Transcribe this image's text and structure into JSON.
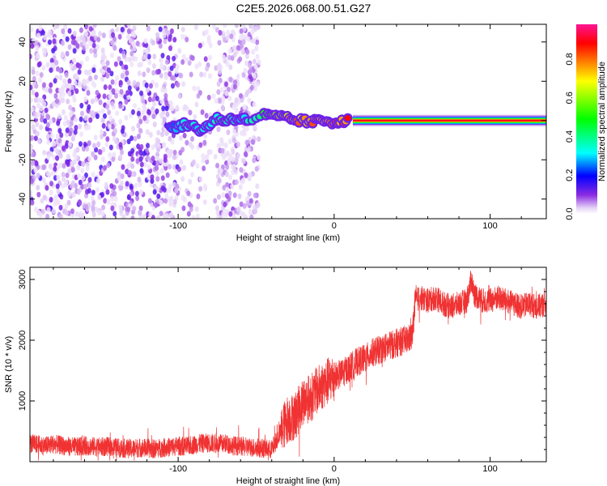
{
  "chart_data": [
    {
      "type": "heatmap",
      "title": "C2E5.2026.068.00.51.G27",
      "xlabel": "Height of straight line (km)",
      "ylabel": "Frequency (Hz)",
      "xlim": [
        -195,
        136
      ],
      "ylim": [
        -50,
        49
      ],
      "xticks": [
        -100,
        0,
        100
      ],
      "yticks": [
        -40,
        -20,
        0,
        20,
        40
      ],
      "colorbar": {
        "label": "Normalized spectral amplitude",
        "range": [
          0,
          0.98
        ],
        "ticks": [
          0.0,
          0.2,
          0.4,
          0.6,
          0.8
        ],
        "colormap": [
          "#ffffff",
          "#e6d5f7",
          "#8a2be2",
          "#0000ff",
          "#00ffff",
          "#00ff00",
          "#ffff00",
          "#ff8000",
          "#ff0000",
          "#ff1493"
        ]
      },
      "noise_region": {
        "x_range": [
          -195,
          -48
        ],
        "amplitude_range": [
          0.02,
          0.15
        ]
      },
      "ridge": [
        [
          -105,
          -4,
          0.3
        ],
        [
          -100,
          -3,
          0.3
        ],
        [
          -95,
          -2,
          0.4
        ],
        [
          -90,
          -3,
          0.35
        ],
        [
          -85,
          -5,
          0.4
        ],
        [
          -80,
          -2,
          0.35
        ],
        [
          -75,
          1,
          0.4
        ],
        [
          -70,
          0,
          0.45
        ],
        [
          -65,
          1,
          0.4
        ],
        [
          -60,
          1,
          0.35
        ],
        [
          -55,
          0,
          0.4
        ],
        [
          -45,
          3,
          0.5
        ],
        [
          -40,
          2,
          0.6
        ],
        [
          -35,
          2,
          0.7
        ],
        [
          -30,
          1,
          0.8
        ],
        [
          -25,
          0,
          0.85
        ],
        [
          -20,
          0,
          0.85
        ],
        [
          -15,
          -1,
          0.85
        ],
        [
          -10,
          0,
          0.85
        ],
        [
          -5,
          0,
          0.85
        ],
        [
          0,
          -1,
          0.9
        ],
        [
          5,
          0,
          0.9
        ],
        [
          10,
          0,
          0.9
        ]
      ],
      "steady_line": {
        "x_range": [
          12,
          136
        ],
        "frequency": 0,
        "amplitude": 0.92
      }
    },
    {
      "type": "line",
      "xlabel": "Height of straight line (km)",
      "ylabel": "SNR (10 * v/v)",
      "xlim": [
        -195,
        136
      ],
      "ylim": [
        0,
        3200
      ],
      "xticks": [
        -100,
        0,
        100
      ],
      "yticks": [
        1000,
        2000,
        3000
      ],
      "color": "#f03232",
      "points": [
        [
          -195,
          300
        ],
        [
          -190,
          280
        ],
        [
          -185,
          260
        ],
        [
          -180,
          290
        ],
        [
          -175,
          270
        ],
        [
          -170,
          250
        ],
        [
          -165,
          240
        ],
        [
          -160,
          260
        ],
        [
          -155,
          250
        ],
        [
          -150,
          240
        ],
        [
          -145,
          250
        ],
        [
          -140,
          230
        ],
        [
          -135,
          220
        ],
        [
          -130,
          210
        ],
        [
          -125,
          230
        ],
        [
          -120,
          220
        ],
        [
          -115,
          210
        ],
        [
          -110,
          230
        ],
        [
          -105,
          240
        ],
        [
          -100,
          260
        ],
        [
          -95,
          250
        ],
        [
          -90,
          280
        ],
        [
          -85,
          300
        ],
        [
          -80,
          310
        ],
        [
          -75,
          290
        ],
        [
          -70,
          300
        ],
        [
          -65,
          270
        ],
        [
          -60,
          250
        ],
        [
          -55,
          240
        ],
        [
          -50,
          230
        ],
        [
          -45,
          220
        ],
        [
          -40,
          200
        ],
        [
          -35,
          450
        ],
        [
          -30,
          700
        ],
        [
          -25,
          750
        ],
        [
          -20,
          1000
        ],
        [
          -15,
          1050
        ],
        [
          -10,
          1200
        ],
        [
          -5,
          1300
        ],
        [
          0,
          1400
        ],
        [
          5,
          1450
        ],
        [
          10,
          1550
        ],
        [
          15,
          1650
        ],
        [
          20,
          1700
        ],
        [
          25,
          1800
        ],
        [
          30,
          1850
        ],
        [
          35,
          1900
        ],
        [
          40,
          1950
        ],
        [
          45,
          2000
        ],
        [
          50,
          2050
        ],
        [
          52,
          2650
        ],
        [
          55,
          2700
        ],
        [
          60,
          2650
        ],
        [
          65,
          2700
        ],
        [
          70,
          2600
        ],
        [
          75,
          2550
        ],
        [
          80,
          2600
        ],
        [
          85,
          2650
        ],
        [
          88,
          3000
        ],
        [
          90,
          2750
        ],
        [
          95,
          2650
        ],
        [
          100,
          2650
        ],
        [
          105,
          2700
        ],
        [
          110,
          2650
        ],
        [
          115,
          2600
        ],
        [
          120,
          2550
        ],
        [
          125,
          2600
        ],
        [
          130,
          2550
        ],
        [
          136,
          2600
        ]
      ]
    }
  ]
}
